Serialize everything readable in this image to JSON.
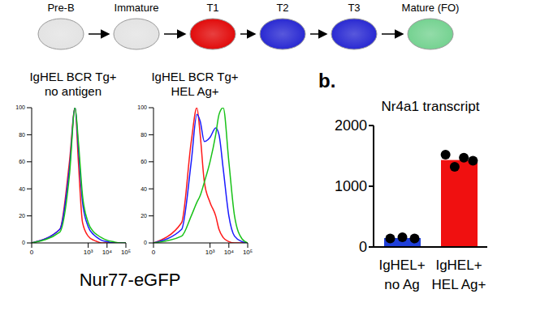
{
  "diagram": {
    "nodes": [
      {
        "label": "Pre-B",
        "color": "#e2e2e2"
      },
      {
        "label": "Immature",
        "color": "#e2e2e2"
      },
      {
        "label": "T1",
        "color": "#e00000"
      },
      {
        "label": "T2",
        "color": "#2020d0"
      },
      {
        "label": "T3",
        "color": "#2020d0"
      },
      {
        "label": "Mature (FO)",
        "color": "#6fd08c"
      }
    ]
  },
  "histogram_xlabel": "Nur77-eGFP",
  "chart_data": [
    {
      "type": "line",
      "title": [
        "IgHEL BCR Tg+",
        "no antigen"
      ],
      "log": "x",
      "x": [
        0,
        30,
        100,
        200,
        300,
        500,
        1000,
        2000,
        3000,
        5000,
        10000,
        20000,
        50000,
        100000
      ],
      "xlim": [
        0,
        100000
      ],
      "xticks": [
        0,
        {
          "value": 1000,
          "label": "10³"
        },
        {
          "value": 10000,
          "label": "10⁴"
        },
        {
          "value": 100000,
          "label": "10⁵"
        }
      ],
      "ylim": [
        0,
        100
      ],
      "yticks": [
        0,
        20,
        40,
        60,
        80,
        100
      ],
      "series": [
        {
          "color": "#ff1a1a",
          "values": [
            0,
            10,
            60,
            100,
            60,
            15,
            5,
            2,
            1,
            0,
            0,
            0,
            0,
            0
          ]
        },
        {
          "color": "#1a1aff",
          "values": [
            0,
            10,
            55,
            100,
            70,
            30,
            12,
            6,
            4,
            2,
            1,
            0,
            0,
            0
          ]
        },
        {
          "color": "#19c219",
          "values": [
            0,
            8,
            50,
            100,
            75,
            35,
            15,
            8,
            6,
            4,
            2,
            1,
            0,
            0
          ]
        }
      ]
    },
    {
      "type": "line",
      "title": [
        "IgHEL BCR Tg+",
        "HEL Ag+"
      ],
      "log": "x",
      "x": [
        0,
        30,
        100,
        200,
        300,
        500,
        1000,
        2000,
        3000,
        5000,
        10000,
        20000,
        50000,
        100000
      ],
      "xlim": [
        0,
        100000
      ],
      "xticks": [
        0,
        {
          "value": 1000,
          "label": "10³"
        },
        {
          "value": 10000,
          "label": "10⁴"
        },
        {
          "value": 100000,
          "label": "10⁵"
        }
      ],
      "ylim": [
        0,
        100
      ],
      "yticks": [
        0,
        20,
        40,
        60,
        80,
        100
      ],
      "series": [
        {
          "color": "#ff1a1a",
          "values": [
            0,
            15,
            75,
            100,
            80,
            45,
            30,
            20,
            10,
            4,
            1,
            0,
            0,
            0
          ]
        },
        {
          "color": "#1a1aff",
          "values": [
            0,
            10,
            60,
            95,
            90,
            75,
            78,
            85,
            80,
            55,
            20,
            5,
            1,
            0
          ]
        },
        {
          "color": "#19c219",
          "values": [
            0,
            5,
            20,
            30,
            35,
            45,
            60,
            80,
            95,
            100,
            60,
            20,
            3,
            0
          ]
        }
      ]
    },
    {
      "type": "bar",
      "panel_label": "b.",
      "title": "Nr4a1 transcript",
      "categories": [
        "IgHEL+ no Ag",
        "IgHEL+ HEL Ag+"
      ],
      "values": [
        147,
        1432
      ],
      "colors": [
        "#1f3fd8",
        "#f01010"
      ],
      "points": [
        [
          140,
          160,
          140
        ],
        [
          1520,
          1320,
          1470,
          1420
        ]
      ],
      "ylim": [
        0,
        2000
      ],
      "yticks": [
        0,
        1000,
        2000
      ],
      "grid": false
    }
  ]
}
